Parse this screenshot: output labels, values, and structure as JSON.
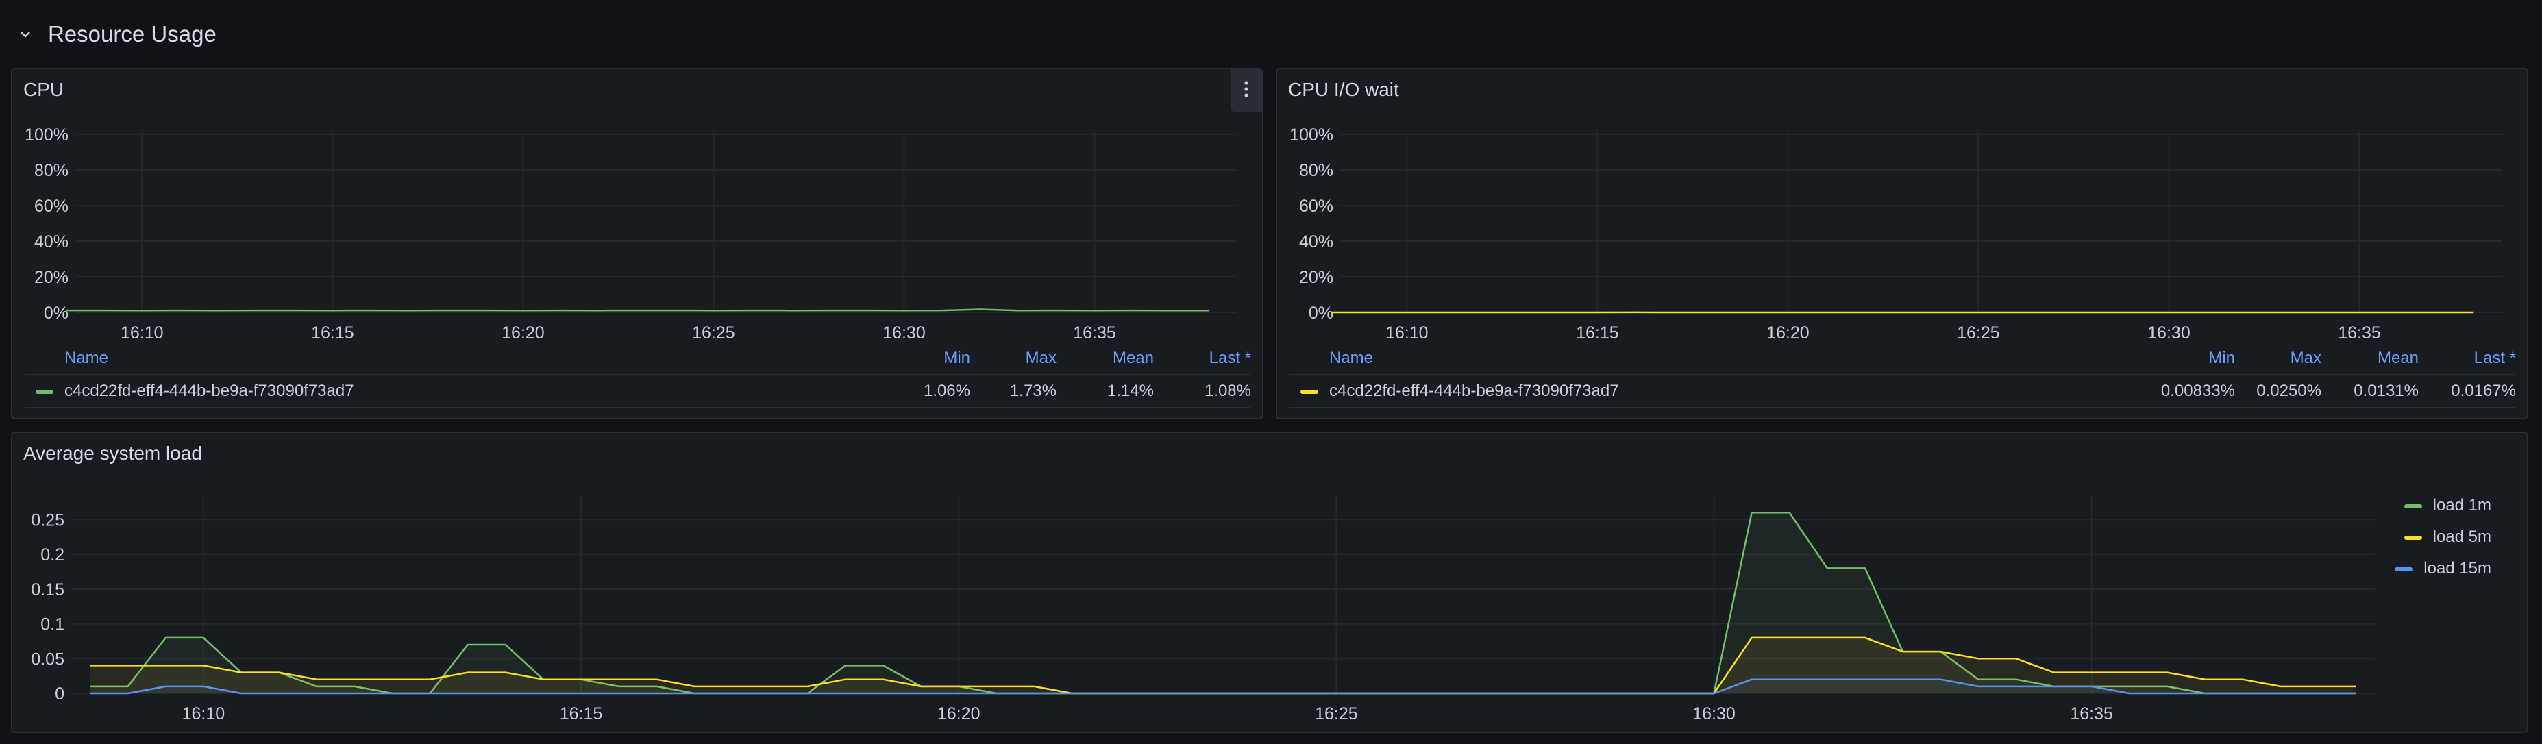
{
  "row": {
    "title": "Resource Usage",
    "icon": "chevron-down-icon"
  },
  "panels": [
    {
      "id": "cpu",
      "title": "CPU",
      "has_menu": true,
      "y_ticks": [
        "100%",
        "80%",
        "60%",
        "40%",
        "20%",
        "0%"
      ],
      "x_ticks": [
        "16:10",
        "16:15",
        "16:20",
        "16:25",
        "16:30",
        "16:35"
      ],
      "legend": {
        "headers": {
          "name": "Name",
          "min": "Min",
          "max": "Max",
          "mean": "Mean",
          "last": "Last *"
        },
        "rows": [
          {
            "name": "c4cd22fd-eff4-444b-be9a-f73090f73ad7",
            "min": "1.06%",
            "max": "1.73%",
            "mean": "1.14%",
            "last": "1.08%",
            "color": "#73bf69"
          }
        ]
      }
    },
    {
      "id": "cpu-io-wait",
      "title": "CPU I/O wait",
      "has_menu": false,
      "y_ticks": [
        "100%",
        "80%",
        "60%",
        "40%",
        "20%",
        "0%"
      ],
      "x_ticks": [
        "16:10",
        "16:15",
        "16:20",
        "16:25",
        "16:30",
        "16:35"
      ],
      "legend": {
        "headers": {
          "name": "Name",
          "min": "Min",
          "max": "Max",
          "mean": "Mean",
          "last": "Last *"
        },
        "rows": [
          {
            "name": "c4cd22fd-eff4-444b-be9a-f73090f73ad7",
            "min": "0.00833%",
            "max": "0.0250%",
            "mean": "0.0131%",
            "last": "0.0167%",
            "color": "#fade2a"
          }
        ]
      }
    },
    {
      "id": "avg-load",
      "title": "Average system load",
      "has_menu": false,
      "y_ticks": [
        "0.25",
        "0.2",
        "0.15",
        "0.1",
        "0.05",
        "0"
      ],
      "x_ticks": [
        "16:10",
        "16:15",
        "16:20",
        "16:25",
        "16:30",
        "16:35"
      ],
      "legend": {
        "items": [
          {
            "name": "load 1m",
            "color": "#73bf69"
          },
          {
            "name": "load 5m",
            "color": "#fade2a"
          },
          {
            "name": "load 15m",
            "color": "#5794f2"
          }
        ]
      }
    }
  ],
  "chart_data": [
    {
      "type": "line",
      "x": [
        "16:08",
        "16:09",
        "16:10",
        "16:11",
        "16:12",
        "16:13",
        "16:14",
        "16:15",
        "16:16",
        "16:17",
        "16:18",
        "16:19",
        "16:20",
        "16:21",
        "16:22",
        "16:23",
        "16:24",
        "16:25",
        "16:26",
        "16:27",
        "16:28",
        "16:29",
        "16:30",
        "16:31",
        "16:32",
        "16:33",
        "16:34",
        "16:35",
        "16:36",
        "16:37",
        "16:38"
      ],
      "series": [
        {
          "name": "c4cd22fd-eff4-444b-be9a-f73090f73ad7",
          "color": "#73bf69",
          "values": [
            1.1,
            1.1,
            1.08,
            1.1,
            1.08,
            1.1,
            1.1,
            1.09,
            1.1,
            1.08,
            1.1,
            1.1,
            1.09,
            1.1,
            1.08,
            1.1,
            1.1,
            1.09,
            1.1,
            1.08,
            1.1,
            1.1,
            1.09,
            1.1,
            1.73,
            1.08,
            1.1,
            1.09,
            1.1,
            1.08,
            1.08
          ]
        }
      ],
      "title": "CPU",
      "ylim": [
        0,
        100
      ],
      "grid": true,
      "legend_position": "bottom"
    },
    {
      "type": "line",
      "x": [
        "16:08",
        "16:09",
        "16:10",
        "16:11",
        "16:12",
        "16:13",
        "16:14",
        "16:15",
        "16:16",
        "16:17",
        "16:18",
        "16:19",
        "16:20",
        "16:21",
        "16:22",
        "16:23",
        "16:24",
        "16:25",
        "16:26",
        "16:27",
        "16:28",
        "16:29",
        "16:30",
        "16:31",
        "16:32",
        "16:33",
        "16:34",
        "16:35",
        "16:36",
        "16:37",
        "16:38"
      ],
      "series": [
        {
          "name": "c4cd22fd-eff4-444b-be9a-f73090f73ad7",
          "color": "#fade2a",
          "values": [
            0.0083,
            0.0167,
            0.0083,
            0.0167,
            0.0083,
            0.0167,
            0.0083,
            0.0167,
            0.025,
            0.0083,
            0.0167,
            0.0083,
            0.0167,
            0.0083,
            0.0167,
            0.0083,
            0.0167,
            0.0083,
            0.0167,
            0.0083,
            0.0167,
            0.0083,
            0.0167,
            0.0083,
            0.0167,
            0.0083,
            0.0167,
            0.0083,
            0.0167,
            0.0083,
            0.0167
          ]
        }
      ],
      "title": "CPU I/O wait",
      "ylim": [
        0,
        100
      ],
      "grid": true,
      "legend_position": "bottom"
    },
    {
      "type": "area",
      "x": [
        "16:08:30",
        "16:09:00",
        "16:09:30",
        "16:10:00",
        "16:10:30",
        "16:11:00",
        "16:11:30",
        "16:12:00",
        "16:12:30",
        "16:13:00",
        "16:13:30",
        "16:14:00",
        "16:14:30",
        "16:15:00",
        "16:15:30",
        "16:16:00",
        "16:16:30",
        "16:17:00",
        "16:17:30",
        "16:18:00",
        "16:18:30",
        "16:19:00",
        "16:19:30",
        "16:20:00",
        "16:20:30",
        "16:21:00",
        "16:21:30",
        "16:22:00",
        "16:22:30",
        "16:23:00",
        "16:23:30",
        "16:24:00",
        "16:24:30",
        "16:25:00",
        "16:25:30",
        "16:26:00",
        "16:26:30",
        "16:27:00",
        "16:27:30",
        "16:28:00",
        "16:28:30",
        "16:29:00",
        "16:29:30",
        "16:30:00",
        "16:30:30",
        "16:31:00",
        "16:31:30",
        "16:32:00",
        "16:32:30",
        "16:33:00",
        "16:33:30",
        "16:34:00",
        "16:34:30",
        "16:35:00",
        "16:35:30",
        "16:36:00",
        "16:36:30",
        "16:37:00",
        "16:37:30",
        "16:38:00",
        "16:38:30"
      ],
      "series": [
        {
          "name": "load 1m",
          "color": "#73bf69",
          "values": [
            0.01,
            0.01,
            0.08,
            0.08,
            0.03,
            0.03,
            0.01,
            0.01,
            0,
            0,
            0.07,
            0.07,
            0.02,
            0.02,
            0.01,
            0.01,
            0,
            0,
            0,
            0,
            0.04,
            0.04,
            0.01,
            0.01,
            0,
            0,
            0,
            0,
            0,
            0,
            0,
            0,
            0,
            0,
            0,
            0,
            0,
            0,
            0,
            0,
            0,
            0,
            0,
            0,
            0.26,
            0.26,
            0.18,
            0.18,
            0.06,
            0.06,
            0.02,
            0.02,
            0.01,
            0.01,
            0.01,
            0.01,
            0,
            0,
            0,
            0,
            0
          ]
        },
        {
          "name": "load 5m",
          "color": "#fade2a",
          "values": [
            0.04,
            0.04,
            0.04,
            0.04,
            0.03,
            0.03,
            0.02,
            0.02,
            0.02,
            0.02,
            0.03,
            0.03,
            0.02,
            0.02,
            0.02,
            0.02,
            0.01,
            0.01,
            0.01,
            0.01,
            0.02,
            0.02,
            0.01,
            0.01,
            0.01,
            0.01,
            0,
            0,
            0,
            0,
            0,
            0,
            0,
            0,
            0,
            0,
            0,
            0,
            0,
            0,
            0,
            0,
            0,
            0,
            0.08,
            0.08,
            0.08,
            0.08,
            0.06,
            0.06,
            0.05,
            0.05,
            0.03,
            0.03,
            0.03,
            0.03,
            0.02,
            0.02,
            0.01,
            0.01,
            0.01
          ]
        },
        {
          "name": "load 15m",
          "color": "#5794f2",
          "values": [
            0,
            0,
            0.01,
            0.01,
            0,
            0,
            0,
            0,
            0,
            0,
            0,
            0,
            0,
            0,
            0,
            0,
            0,
            0,
            0,
            0,
            0,
            0,
            0,
            0,
            0,
            0,
            0,
            0,
            0,
            0,
            0,
            0,
            0,
            0,
            0,
            0,
            0,
            0,
            0,
            0,
            0,
            0,
            0,
            0,
            0.02,
            0.02,
            0.02,
            0.02,
            0.02,
            0.02,
            0.01,
            0.01,
            0.01,
            0.01,
            0,
            0,
            0,
            0,
            0,
            0,
            0
          ]
        }
      ],
      "title": "Average system load",
      "ylim": [
        0,
        0.28
      ],
      "grid": true,
      "legend_position": "right"
    }
  ]
}
